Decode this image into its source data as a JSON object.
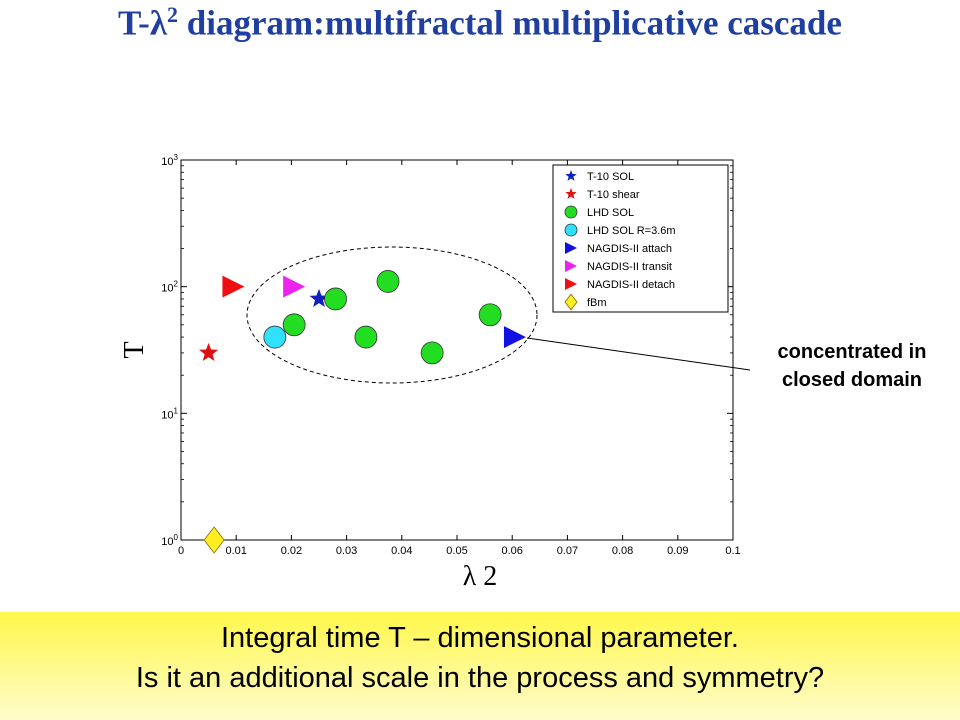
{
  "slide": {
    "title_prefix": "T-",
    "title_lambda": "λ",
    "title_exp": "2",
    "title_suffix": " diagram:multifractal multiplicative cascade",
    "footer_line_1": "Integral time T – dimensional parameter.",
    "footer_line_2": "Is it an additional scale in the process and symmetry?",
    "annotation": "concentrated in closed domain",
    "annotation_line_1": "concentrated in",
    "annotation_line_2": "closed domain"
  },
  "chart_data": {
    "type": "scatter",
    "title": "",
    "xlabel": "λ 2",
    "ylabel": "T",
    "xlim": [
      0,
      0.1
    ],
    "ylim": [
      1,
      1000
    ],
    "yscale": "log",
    "grid": false,
    "legend_position": "top-right",
    "x_ticks": [
      "0",
      "0.01",
      "0.02",
      "0.03",
      "0.04",
      "0.05",
      "0.06",
      "0.07",
      "0.08",
      "0.09",
      "0.1"
    ],
    "y_ticks": [
      {
        "base": "10",
        "exp": "0",
        "value": 1
      },
      {
        "base": "10",
        "exp": "1",
        "value": 10
      },
      {
        "base": "10",
        "exp": "2",
        "value": 100
      },
      {
        "base": "10",
        "exp": "3",
        "value": 1000
      }
    ],
    "series": [
      {
        "name": "T-10 SOL",
        "marker": "star",
        "color": "#1020c0",
        "points": [
          [
            0.025,
            80
          ]
        ]
      },
      {
        "name": "T-10 shear",
        "marker": "star",
        "color": "#e01010",
        "points": [
          [
            0.005,
            30
          ]
        ]
      },
      {
        "name": "LHD SOL",
        "marker": "circle",
        "color": "#22dd22",
        "points": [
          [
            0.0205,
            50
          ],
          [
            0.028,
            80
          ],
          [
            0.0335,
            40
          ],
          [
            0.0375,
            110
          ],
          [
            0.0455,
            30
          ],
          [
            0.056,
            60
          ]
        ]
      },
      {
        "name": "LHD SOL R=3.6m",
        "marker": "circle",
        "color": "#30e0ff",
        "points": [
          [
            0.017,
            40
          ]
        ]
      },
      {
        "name": "NAGDIS-II attach",
        "marker": "triangle-right",
        "color": "#1010e0",
        "points": [
          [
            0.0605,
            40
          ]
        ]
      },
      {
        "name": "NAGDIS-II transit",
        "marker": "triangle-right",
        "color": "#ee22ee",
        "points": [
          [
            0.0205,
            100
          ]
        ]
      },
      {
        "name": "NAGDIS-II detach",
        "marker": "triangle-right",
        "color": "#ee1010",
        "points": [
          [
            0.0095,
            100
          ]
        ]
      },
      {
        "name": "fBm",
        "marker": "diamond",
        "color": "#ffee22",
        "points": [
          [
            0.006,
            1
          ]
        ]
      }
    ]
  }
}
